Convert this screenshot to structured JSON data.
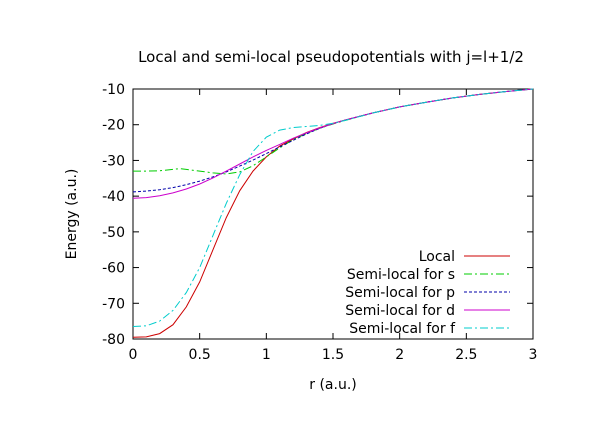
{
  "chart_data": {
    "type": "line",
    "title": "Local and semi-local pseudopotentials with j=l+1/2",
    "xlabel": "r (a.u.)",
    "ylabel": "Energy (a.u.)",
    "xlim": [
      0,
      3
    ],
    "ylim": [
      -80,
      -10
    ],
    "xticks": [
      0,
      0.5,
      1,
      1.5,
      2,
      2.5,
      3
    ],
    "xtick_labels": [
      "0",
      "0.5",
      "1",
      "1.5",
      "2",
      "2.5",
      "3"
    ],
    "yticks": [
      -80,
      -70,
      -60,
      -50,
      -40,
      -30,
      -20,
      -10
    ],
    "ytick_labels": [
      "-80",
      "-70",
      "-60",
      "-50",
      "-40",
      "-30",
      "-20",
      "-10"
    ],
    "grid": false,
    "legend_position": "bottom-right",
    "series": [
      {
        "name": "Local",
        "color": "#cc0000",
        "dash": "solid",
        "x": [
          0,
          0.1,
          0.2,
          0.3,
          0.4,
          0.5,
          0.6,
          0.7,
          0.8,
          0.9,
          1.0,
          1.1,
          1.2,
          1.3,
          1.4,
          1.5,
          1.6,
          1.8,
          2.0,
          2.2,
          2.4,
          2.6,
          2.8,
          3.0
        ],
        "y": [
          -79.5,
          -79.4,
          -78.5,
          -76,
          -71,
          -64,
          -55,
          -46,
          -38.5,
          -33,
          -29,
          -26,
          -24,
          -22.2,
          -20.8,
          -19.6,
          -18.6,
          -16.7,
          -15.0,
          -13.7,
          -12.5,
          -11.5,
          -10.7,
          -10.0
        ]
      },
      {
        "name": "Semi-local for s",
        "color": "#00cc00",
        "dash": "dash-dot",
        "x": [
          0,
          0.1,
          0.2,
          0.3,
          0.35,
          0.4,
          0.5,
          0.6,
          0.7,
          0.8,
          0.9,
          1.0,
          1.1,
          1.2,
          1.3,
          1.4,
          1.5,
          1.6,
          1.8,
          2.0,
          2.2,
          2.4,
          2.6,
          2.8,
          3.0
        ],
        "y": [
          -33,
          -33,
          -32.9,
          -32.5,
          -32.3,
          -32.5,
          -33,
          -33.5,
          -33.8,
          -33.2,
          -31.5,
          -29,
          -26.5,
          -24.2,
          -22.5,
          -21,
          -19.8,
          -18.7,
          -16.7,
          -15.0,
          -13.7,
          -12.5,
          -11.5,
          -10.7,
          -10.0
        ]
      },
      {
        "name": "Semi-local for p",
        "color": "#0000aa",
        "dash": "dotted",
        "x": [
          0,
          0.1,
          0.2,
          0.3,
          0.4,
          0.5,
          0.6,
          0.7,
          0.8,
          0.9,
          1.0,
          1.1,
          1.2,
          1.3,
          1.4,
          1.5,
          1.6,
          1.8,
          2.0,
          2.2,
          2.4,
          2.6,
          2.8,
          3.0
        ],
        "y": [
          -38.8,
          -38.6,
          -38.2,
          -37.6,
          -36.8,
          -35.8,
          -34.6,
          -33.2,
          -31.6,
          -29.9,
          -28.1,
          -26.2,
          -24.4,
          -22.6,
          -21,
          -19.7,
          -18.6,
          -16.7,
          -15.0,
          -13.7,
          -12.5,
          -11.5,
          -10.7,
          -10.0
        ]
      },
      {
        "name": "Semi-local for d",
        "color": "#cc00cc",
        "dash": "solid",
        "x": [
          0,
          0.1,
          0.2,
          0.3,
          0.4,
          0.5,
          0.6,
          0.7,
          0.8,
          0.9,
          1.0,
          1.1,
          1.2,
          1.3,
          1.4,
          1.5,
          1.6,
          1.8,
          2.0,
          2.2,
          2.4,
          2.6,
          2.8,
          3.0
        ],
        "y": [
          -40.6,
          -40.4,
          -39.9,
          -39.1,
          -38,
          -36.6,
          -34.9,
          -33,
          -31,
          -29,
          -27.2,
          -25.5,
          -23.8,
          -22.3,
          -20.9,
          -19.7,
          -18.6,
          -16.7,
          -15.0,
          -13.7,
          -12.5,
          -11.5,
          -10.7,
          -10.0
        ]
      },
      {
        "name": "Semi-local for f",
        "color": "#00cccc",
        "dash": "dash-dot",
        "x": [
          0,
          0.1,
          0.2,
          0.3,
          0.4,
          0.5,
          0.6,
          0.7,
          0.8,
          0.9,
          1.0,
          1.1,
          1.2,
          1.3,
          1.4,
          1.5,
          1.6,
          1.8,
          2.0,
          2.2,
          2.4,
          2.6,
          2.8,
          3.0
        ],
        "y": [
          -76.5,
          -76.3,
          -75,
          -72,
          -67,
          -60,
          -51,
          -42,
          -34,
          -27.5,
          -23.5,
          -21.5,
          -20.8,
          -20.5,
          -20.2,
          -19.6,
          -18.7,
          -16.7,
          -15.0,
          -13.7,
          -12.5,
          -11.5,
          -10.7,
          -10.0
        ]
      }
    ]
  }
}
